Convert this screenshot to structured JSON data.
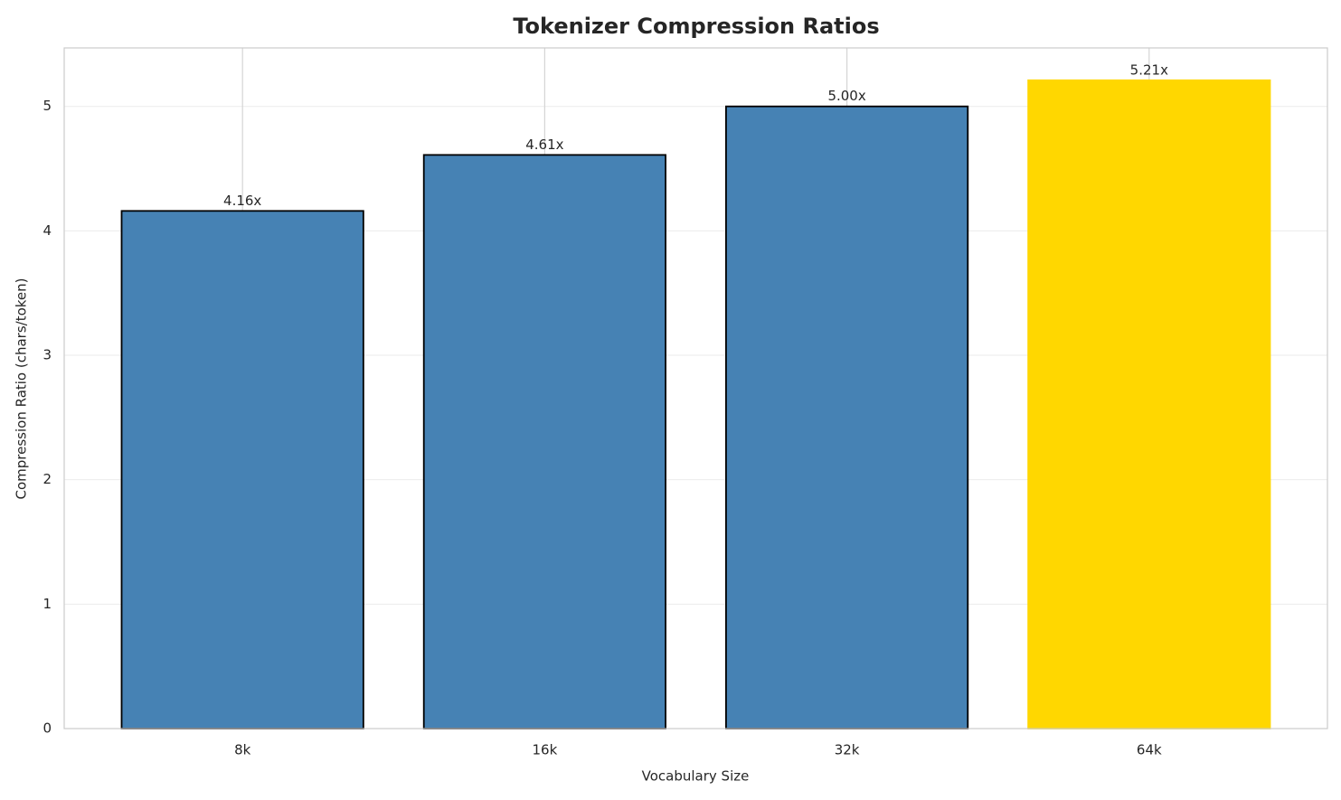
{
  "chart_data": {
    "type": "bar",
    "title": "Tokenizer Compression Ratios",
    "xlabel": "Vocabulary Size",
    "ylabel": "Compression Ratio (chars/token)",
    "categories": [
      "8k",
      "16k",
      "32k",
      "64k"
    ],
    "values": [
      4.16,
      4.61,
      5.0,
      5.21
    ],
    "value_labels": [
      "4.16x",
      "4.61x",
      "5.00x",
      "5.21x"
    ],
    "colors": [
      "#4682b4",
      "#4682b4",
      "#4682b4",
      "#ffd700"
    ],
    "edgecolors": [
      "#000000",
      "#000000",
      "#000000",
      "#ffd700"
    ],
    "ylim": [
      0,
      5.47
    ],
    "yticks": [
      0,
      1,
      2,
      3,
      4,
      5
    ],
    "grid": true
  }
}
